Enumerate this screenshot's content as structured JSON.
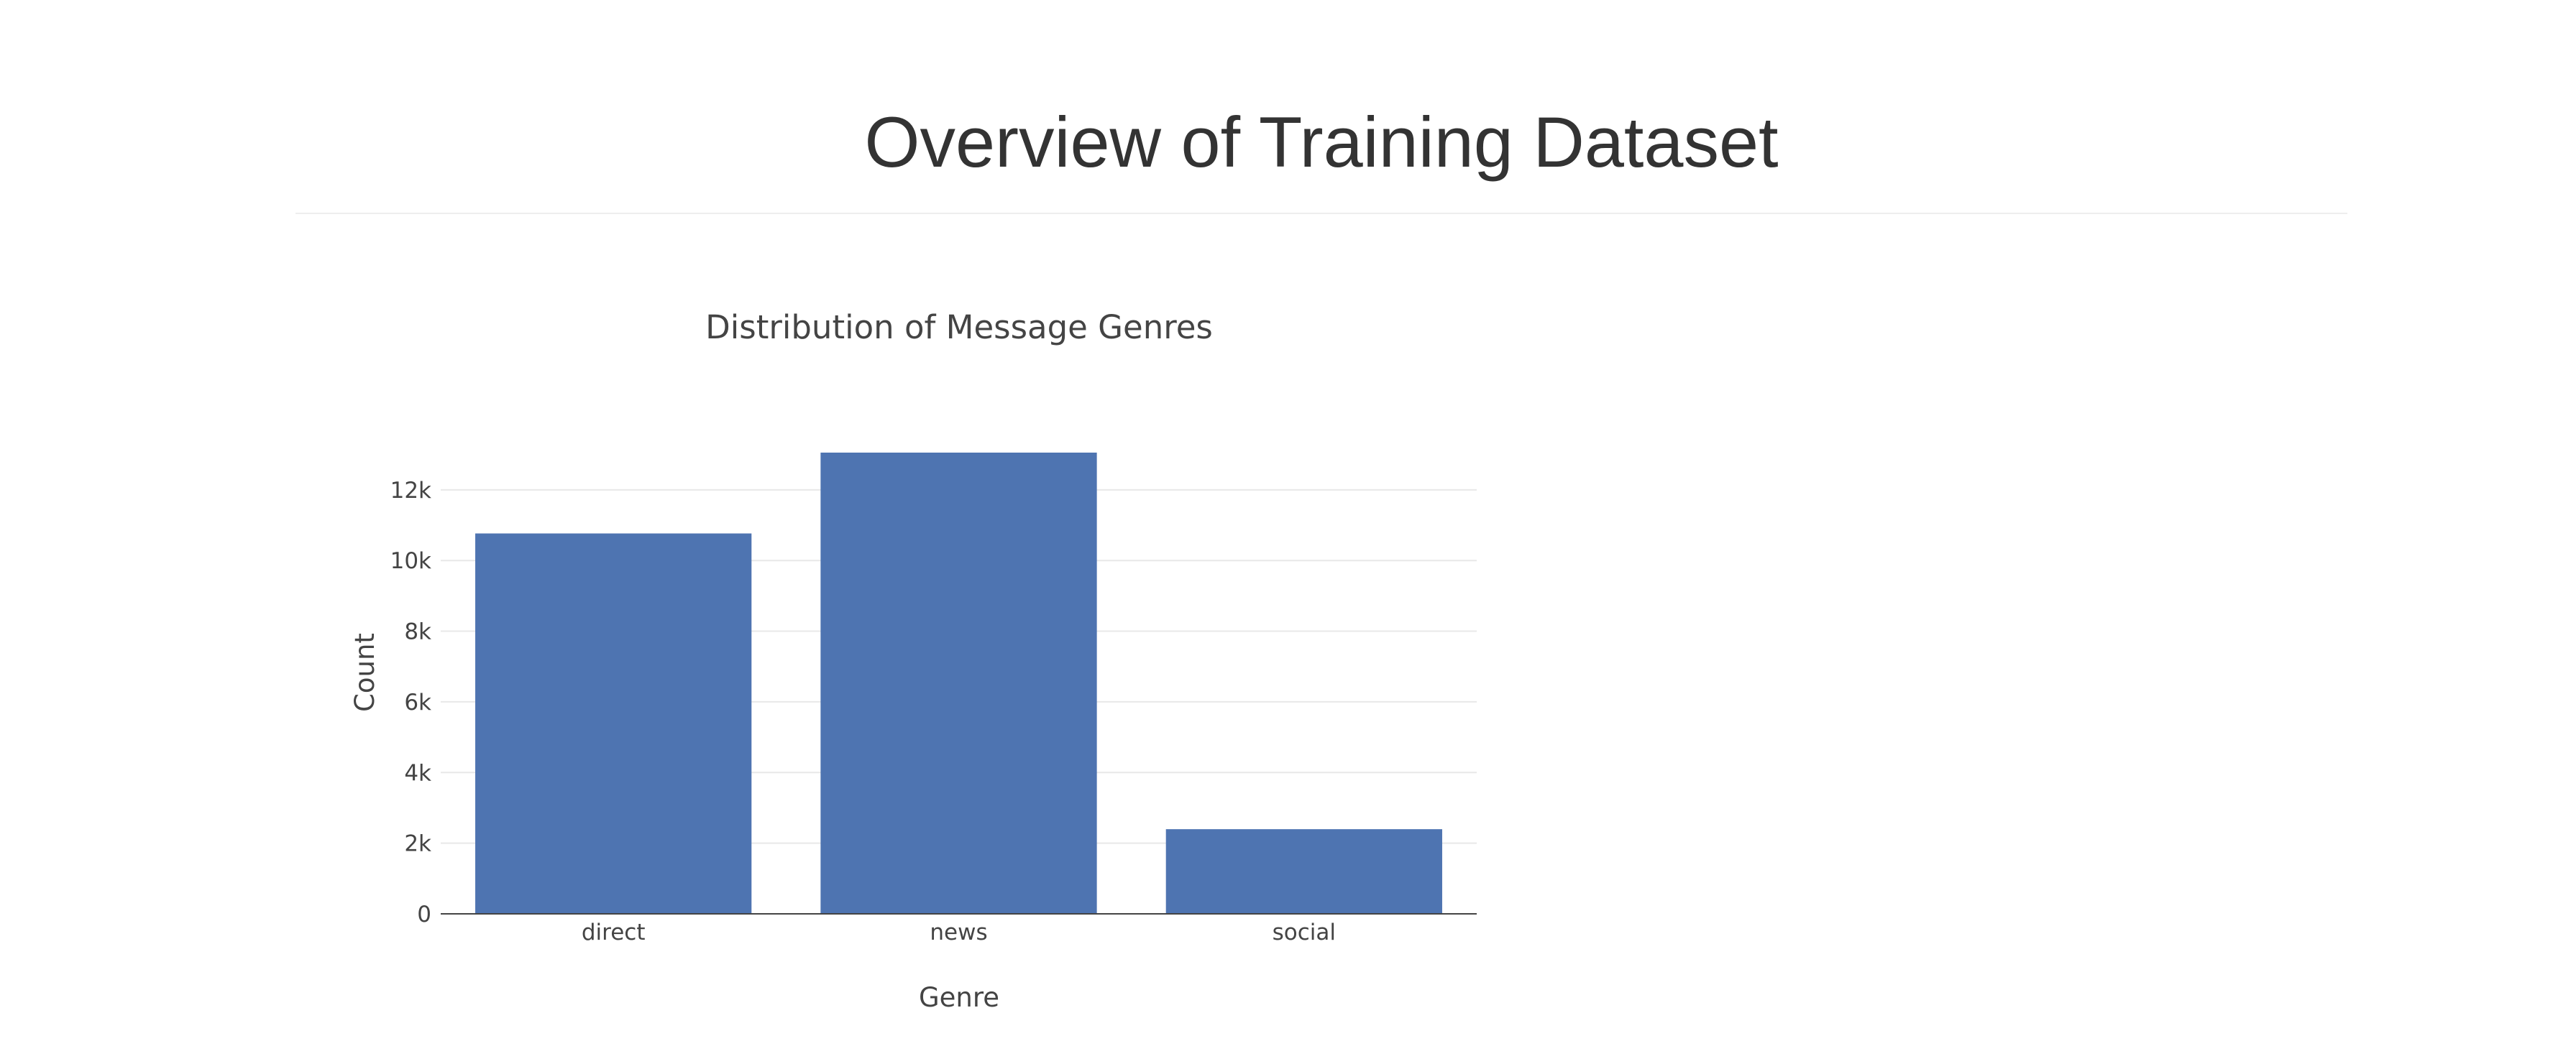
{
  "header": {
    "title": "Overview of Training Dataset"
  },
  "chart_data": {
    "type": "bar",
    "title": "Distribution of Message Genres",
    "xlabel": "Genre",
    "ylabel": "Count",
    "categories": [
      "direct",
      "news",
      "social"
    ],
    "values": [
      10766,
      13054,
      2396
    ],
    "ylim": [
      0,
      13054
    ],
    "yticks": [
      0,
      2000,
      4000,
      6000,
      8000,
      10000,
      12000
    ],
    "ytick_labels": [
      "0",
      "2k",
      "4k",
      "6k",
      "8k",
      "10k",
      "12k"
    ],
    "bar_color": "#4e74b1",
    "grid": true,
    "legend": "none"
  }
}
